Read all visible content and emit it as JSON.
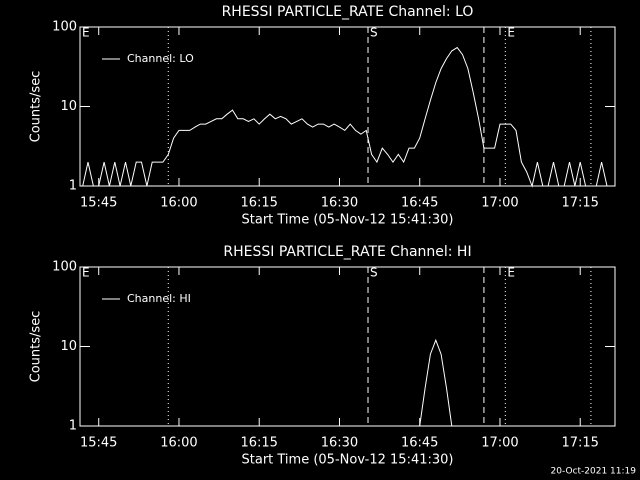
{
  "chart_data": [
    {
      "type": "line",
      "title": "RHESSI PARTICLE_RATE Channel: LO",
      "x_label": "Start Time (05-Nov-12 15:41:30)",
      "y_label": "Counts/sec",
      "x": [
        "15:42",
        "15:43",
        "15:44",
        "15:45",
        "15:46",
        "15:47",
        "15:48",
        "15:49",
        "15:50",
        "15:51",
        "15:52",
        "15:53",
        "15:54",
        "15:55",
        "15:56",
        "15:57",
        "15:58",
        "15:59",
        "16:00",
        "16:01",
        "16:02",
        "16:03",
        "16:04",
        "16:05",
        "16:06",
        "16:07",
        "16:08",
        "16:09",
        "16:10",
        "16:11",
        "16:12",
        "16:13",
        "16:14",
        "16:15",
        "16:16",
        "16:17",
        "16:18",
        "16:19",
        "16:20",
        "16:21",
        "16:22",
        "16:23",
        "16:24",
        "16:25",
        "16:26",
        "16:27",
        "16:28",
        "16:29",
        "16:30",
        "16:31",
        "16:32",
        "16:33",
        "16:34",
        "16:35",
        "16:36",
        "16:37",
        "16:38",
        "16:39",
        "16:40",
        "16:41",
        "16:42",
        "16:43",
        "16:44",
        "16:45",
        "16:46",
        "16:47",
        "16:48",
        "16:49",
        "16:50",
        "16:51",
        "16:52",
        "16:53",
        "16:54",
        "16:55",
        "16:56",
        "16:57",
        "16:58",
        "16:59",
        "17:00",
        "17:01",
        "17:02",
        "17:03",
        "17:04",
        "17:05",
        "17:06",
        "17:07",
        "17:08",
        "17:09",
        "17:10",
        "17:11",
        "17:12",
        "17:13",
        "17:14",
        "17:15",
        "17:16",
        "17:17",
        "17:18",
        "17:19",
        "17:20",
        "17:21"
      ],
      "series": [
        {
          "name": "Channel: LO",
          "color": "#ffffff",
          "values": [
            1,
            2,
            1,
            1,
            2,
            1,
            2,
            1,
            2,
            1,
            2,
            2,
            1,
            2,
            2,
            2,
            2.5,
            4,
            5,
            5,
            5,
            5.5,
            6,
            6,
            6.5,
            7,
            7,
            8,
            9,
            7,
            7,
            6.5,
            7,
            6,
            7,
            8,
            7,
            7.5,
            7,
            6,
            6.5,
            7,
            6,
            5.5,
            6,
            6,
            5.5,
            6,
            5.5,
            5,
            6,
            5,
            4.5,
            5,
            2.5,
            2,
            3,
            2.5,
            2,
            2.5,
            2,
            3,
            3,
            4,
            7,
            12,
            20,
            30,
            40,
            50,
            55,
            45,
            30,
            15,
            7,
            3,
            3,
            3,
            6,
            6,
            6,
            5,
            2,
            1.5,
            1,
            2,
            1,
            1,
            2,
            1,
            1,
            2,
            1,
            2,
            1,
            1,
            1,
            2,
            1,
            1
          ]
        }
      ],
      "xlim": [
        "15:41:30",
        "17:21:30"
      ],
      "xticks": [
        "15:45",
        "16:00",
        "16:15",
        "16:30",
        "16:45",
        "17:00",
        "17:15"
      ],
      "ylim": [
        1,
        100
      ],
      "yticks": [
        1,
        10,
        100
      ],
      "log_y": true,
      "legend": "top-left",
      "markers": [
        {
          "x": "15:41:30",
          "style": "dotted",
          "label": "E"
        },
        {
          "x": "15:58",
          "style": "dotted"
        },
        {
          "x": "16:35:20",
          "style": "dashed",
          "label": "S"
        },
        {
          "x": "16:57",
          "style": "dashed"
        },
        {
          "x": "17:01",
          "style": "dotted",
          "label": "E"
        },
        {
          "x": "17:17",
          "style": "dotted"
        }
      ]
    },
    {
      "type": "line",
      "title": "RHESSI PARTICLE_RATE Channel: HI",
      "x_label": "Start Time (05-Nov-12 15:41:30)",
      "y_label": "Counts/sec",
      "x": [
        "16:45",
        "16:46",
        "16:47",
        "16:48",
        "16:49",
        "16:50",
        "16:51"
      ],
      "series": [
        {
          "name": "Channel: HI",
          "color": "#ffffff",
          "values": [
            1,
            3,
            8,
            12,
            8,
            3,
            1
          ]
        }
      ],
      "xlim": [
        "15:41:30",
        "17:21:30"
      ],
      "xticks": [
        "15:45",
        "16:00",
        "16:15",
        "16:30",
        "16:45",
        "17:00",
        "17:15"
      ],
      "ylim": [
        1,
        100
      ],
      "yticks": [
        1,
        10,
        100
      ],
      "log_y": true,
      "legend": "top-left",
      "markers": [
        {
          "x": "15:41:30",
          "style": "dotted",
          "label": "E"
        },
        {
          "x": "15:58",
          "style": "dotted"
        },
        {
          "x": "16:35:20",
          "style": "dashed",
          "label": "S"
        },
        {
          "x": "16:57",
          "style": "dashed"
        },
        {
          "x": "17:01",
          "style": "dotted",
          "label": "E"
        },
        {
          "x": "17:17",
          "style": "dotted"
        }
      ]
    }
  ],
  "footer": "20-Oct-2021 11:19"
}
